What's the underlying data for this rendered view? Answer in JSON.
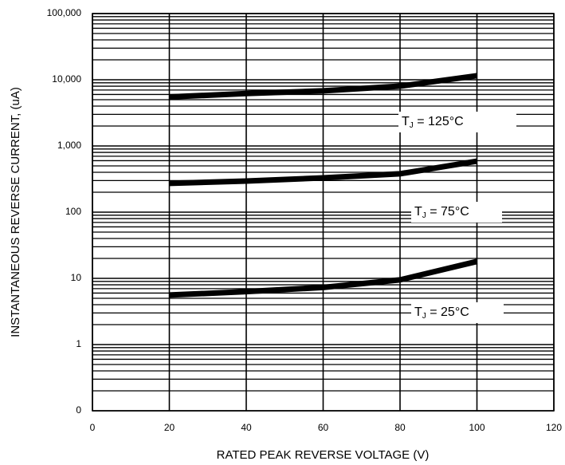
{
  "chart_data": {
    "type": "line",
    "xlabel": "RATED PEAK REVERSE VOLTAGE (V)",
    "ylabel": "INSTANTANEOUS REVERSE CURRENT, (uA)",
    "x": [
      20,
      40,
      60,
      80,
      100
    ],
    "series": [
      {
        "name": {
          "text": "T",
          "sub": "J",
          "rest": " = 125°C"
        },
        "color": "#000000",
        "values": [
          5500,
          6200,
          6800,
          8000,
          11500
        ]
      },
      {
        "name": {
          "text": "T",
          "sub": "J",
          "rest": " = 75°C"
        },
        "color": "#000000",
        "values": [
          272,
          295,
          330,
          380,
          590
        ]
      },
      {
        "name": {
          "text": "T",
          "sub": "J",
          "rest": " = 25°C"
        },
        "color": "#000000",
        "values": [
          5.6,
          6.3,
          7.3,
          9.5,
          18
        ]
      }
    ],
    "xlim": [
      0,
      120
    ],
    "xticks": [
      0,
      20,
      40,
      60,
      80,
      100,
      120
    ],
    "ylim": [
      0.1,
      100000
    ],
    "yticks": [
      {
        "value": 0.1,
        "label": "0"
      },
      1,
      10,
      100,
      {
        "value": 1000,
        "label": "1,000"
      },
      {
        "value": 10000,
        "label": "10,000"
      },
      {
        "value": 100000,
        "label": "100,000"
      }
    ],
    "log_y": true,
    "grid": true,
    "minor_grid": true
  }
}
